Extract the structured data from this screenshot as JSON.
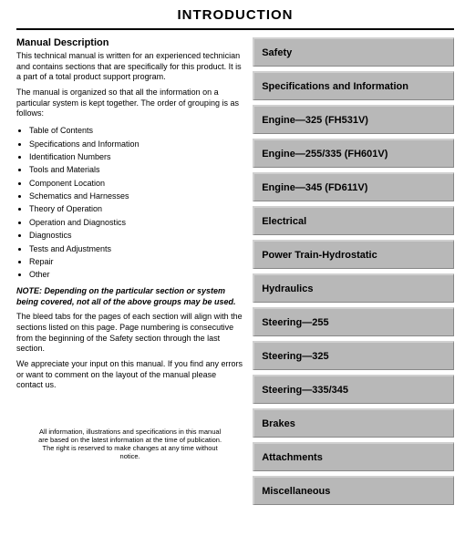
{
  "pageTitle": "INTRODUCTION",
  "heading": "Manual Description",
  "para1": "This technical manual is written for an experienced technician and contains sections that are specifically for this product. It is a part of a total product support program.",
  "para2": "The manual is organized so that all the information on a particular system is kept together. The order of grouping is as follows:",
  "bullets": [
    "Table of Contents",
    "Specifications and Information",
    "Identification Numbers",
    "Tools and Materials",
    "Component Location",
    "Schematics and Harnesses",
    "Theory of Operation",
    "Operation and Diagnostics",
    "Diagnostics",
    "Tests and Adjustments",
    "Repair",
    "Other"
  ],
  "note": "NOTE: Depending on the particular section or system being covered, not all of the above groups may be used.",
  "para3": "The bleed tabs for the pages of each section will align with the sections listed on this page. Page numbering is consecutive from the beginning of the Safety section through the last section.",
  "para4": "We appreciate your input on this manual. If you find any errors or want to comment on the layout of the manual please contact us.",
  "footer": "All information, illustrations and specifications in this manual are based on the latest information at the time of publication. The right is reserved to make changes at any time without notice.",
  "tabs": [
    "Safety",
    "Specifications and Information",
    "Engine—325 (FH531V)",
    "Engine—255/335 (FH601V)",
    "Engine—345 (FD611V)",
    "Electrical",
    "Power Train-Hydrostatic",
    "Hydraulics",
    "Steering—255",
    "Steering—325",
    "Steering—335/345",
    "Brakes",
    "Attachments",
    "Miscellaneous"
  ],
  "colors": {
    "tabBg": "#b8b8b8",
    "tabBorder": "#888888",
    "text": "#000000",
    "bg": "#ffffff"
  }
}
